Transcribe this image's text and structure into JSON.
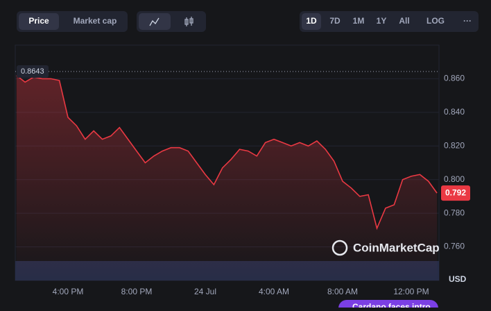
{
  "controls": {
    "tabs": [
      "Price",
      "Market cap"
    ],
    "ranges": [
      "1D",
      "7D",
      "1M",
      "1Y",
      "All",
      "LOG",
      "···"
    ]
  },
  "chart_data": {
    "type": "line",
    "color": "#ea3943",
    "categories": [
      null,
      null,
      null,
      null,
      null,
      null,
      "4:00 PM",
      null,
      null,
      null,
      null,
      null,
      null,
      null,
      "8:00 PM",
      null,
      null,
      null,
      null,
      null,
      null,
      null,
      "24 Jul",
      null,
      null,
      null,
      null,
      null,
      null,
      null,
      "4:00 AM",
      null,
      null,
      null,
      null,
      null,
      null,
      null,
      "8:00 AM",
      null,
      null,
      null,
      null,
      null,
      null,
      null,
      "12:00 PM",
      null,
      null,
      null
    ],
    "values": [
      0.862,
      0.858,
      0.861,
      0.86,
      0.86,
      0.859,
      0.837,
      0.832,
      0.824,
      0.829,
      0.824,
      0.826,
      0.831,
      0.824,
      0.817,
      0.81,
      0.814,
      0.817,
      0.819,
      0.819,
      0.817,
      0.81,
      0.803,
      0.797,
      0.807,
      0.812,
      0.818,
      0.817,
      0.814,
      0.822,
      0.824,
      0.822,
      0.82,
      0.822,
      0.82,
      0.823,
      0.818,
      0.811,
      0.799,
      0.795,
      0.79,
      0.791,
      0.771,
      0.783,
      0.785,
      0.8,
      0.802,
      0.803,
      0.799,
      0.792
    ],
    "ylim": [
      0.74,
      0.88
    ],
    "yticks": [
      {
        "value": 0.76,
        "label": "0.760"
      },
      {
        "value": 0.78,
        "label": "0.780"
      },
      {
        "value": 0.8,
        "label": "0.800"
      },
      {
        "value": 0.82,
        "label": "0.820"
      },
      {
        "value": 0.84,
        "label": "0.840"
      },
      {
        "value": 0.86,
        "label": "0.860"
      }
    ],
    "reference_price": 0.8643,
    "current_price": 0.792,
    "currency": "USD",
    "watermark": "CoinMarketCap",
    "grid": true
  },
  "news": "Cardano faces intro"
}
